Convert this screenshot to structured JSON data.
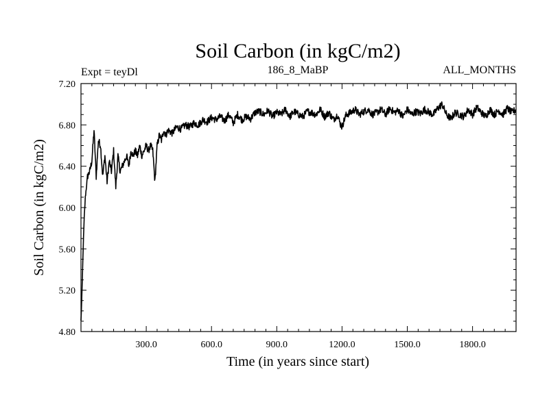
{
  "chart_data": {
    "type": "line",
    "title": "Soil Carbon (in kgC/m2)",
    "header_left": "Expt = teyDl",
    "header_center": "186_8_MaBP",
    "header_right": "ALL_MONTHS",
    "xlabel": "Time (in years since start)",
    "ylabel": "Soil Carbon (in kgC/m2)",
    "xlim": [
      0,
      2000
    ],
    "ylim": [
      4.8,
      7.2
    ],
    "x_ticks": [
      300,
      600,
      900,
      1200,
      1500,
      1800
    ],
    "x_tick_labels": [
      "300.0",
      "600.0",
      "900.0",
      "1200.0",
      "1500.0",
      "1800.0"
    ],
    "y_ticks": [
      4.8,
      5.2,
      5.6,
      6.0,
      6.4,
      6.8,
      7.2
    ],
    "y_tick_labels": [
      "4.80",
      "5.20",
      "5.60",
      "6.00",
      "6.40",
      "6.80",
      "7.20"
    ],
    "series": [
      {
        "name": "Soil Carbon",
        "color": "#000000",
        "x": [
          0,
          5,
          10,
          15,
          20,
          30,
          40,
          50,
          60,
          70,
          80,
          90,
          100,
          110,
          120,
          130,
          140,
          150,
          160,
          170,
          180,
          190,
          200,
          210,
          220,
          230,
          240,
          250,
          260,
          270,
          280,
          290,
          300,
          310,
          320,
          330,
          340,
          350,
          360,
          370,
          380,
          390,
          400,
          420,
          440,
          460,
          480,
          500,
          520,
          540,
          560,
          580,
          600,
          620,
          640,
          660,
          680,
          700,
          720,
          740,
          760,
          780,
          800,
          820,
          840,
          860,
          880,
          900,
          920,
          940,
          960,
          980,
          1000,
          1020,
          1040,
          1060,
          1080,
          1100,
          1120,
          1140,
          1160,
          1180,
          1190,
          1200,
          1210,
          1220,
          1240,
          1260,
          1280,
          1300,
          1320,
          1340,
          1360,
          1380,
          1400,
          1420,
          1440,
          1460,
          1480,
          1500,
          1520,
          1540,
          1560,
          1580,
          1600,
          1620,
          1640,
          1650,
          1660,
          1680,
          1700,
          1720,
          1740,
          1760,
          1780,
          1800,
          1820,
          1840,
          1860,
          1880,
          1900,
          1920,
          1940,
          1960,
          1980,
          2000
        ],
        "values": [
          4.9,
          5.2,
          5.6,
          5.9,
          6.1,
          6.3,
          6.35,
          6.45,
          6.75,
          6.3,
          6.65,
          6.6,
          6.3,
          6.5,
          6.25,
          6.45,
          6.35,
          6.55,
          6.2,
          6.5,
          6.35,
          6.4,
          6.45,
          6.5,
          6.4,
          6.55,
          6.5,
          6.55,
          6.5,
          6.6,
          6.5,
          6.55,
          6.6,
          6.55,
          6.6,
          6.55,
          6.25,
          6.6,
          6.7,
          6.65,
          6.75,
          6.7,
          6.75,
          6.72,
          6.78,
          6.76,
          6.8,
          6.78,
          6.82,
          6.8,
          6.85,
          6.83,
          6.87,
          6.85,
          6.88,
          6.84,
          6.9,
          6.82,
          6.9,
          6.85,
          6.88,
          6.86,
          6.92,
          6.93,
          6.9,
          6.94,
          6.88,
          6.92,
          6.9,
          6.95,
          6.88,
          6.93,
          6.9,
          6.88,
          6.93,
          6.92,
          6.9,
          6.95,
          6.88,
          6.92,
          6.85,
          6.9,
          6.82,
          6.78,
          6.85,
          6.9,
          6.92,
          6.95,
          6.9,
          6.93,
          6.95,
          6.9,
          6.92,
          6.95,
          6.9,
          6.96,
          6.92,
          6.94,
          6.88,
          6.95,
          6.9,
          6.93,
          6.91,
          6.95,
          6.92,
          6.9,
          6.96,
          6.98,
          7.0,
          6.9,
          6.86,
          6.92,
          6.9,
          6.88,
          6.95,
          6.9,
          6.97,
          6.92,
          6.88,
          6.95,
          6.9,
          6.94,
          6.9,
          6.96,
          6.92,
          6.95
        ]
      }
    ]
  }
}
